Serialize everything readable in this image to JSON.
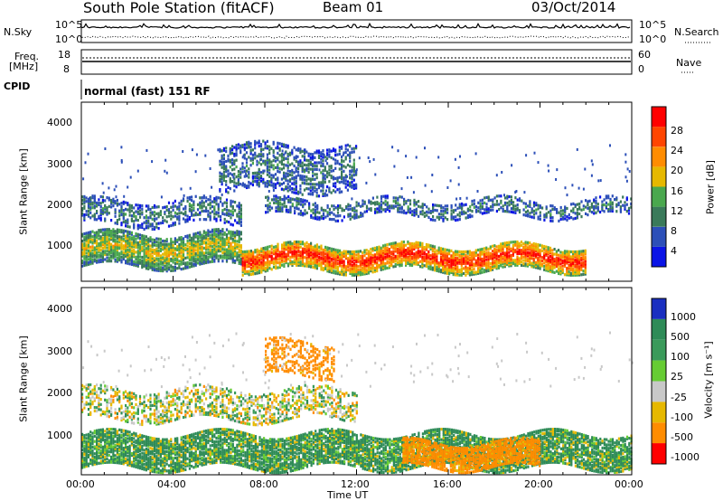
{
  "header": {
    "station": "South Pole Station (fitACF)",
    "beam": "Beam 01",
    "date": "03/Oct/2014"
  },
  "top_panel": {
    "left_label": "N.Sky",
    "right_label": "N.Search",
    "left_ticks": [
      "10^5",
      "10^0"
    ],
    "right_ticks": [
      "10^5",
      "10^0"
    ]
  },
  "freq_panel": {
    "left_label_line1": "Freq.",
    "left_label_line2": "[MHz]",
    "right_label": "Nave",
    "left_ticks": [
      "18",
      "8"
    ],
    "right_ticks": [
      "60",
      "0"
    ]
  },
  "cpid_panel": {
    "label": "CPID",
    "value": "normal (fast) 151 RF"
  },
  "power_panel": {
    "ylabel": "Slant Range [km]",
    "yticks": [
      "4000",
      "3000",
      "2000",
      "1000"
    ],
    "colorbar_label": "Power [dB]",
    "colorbar_ticks": [
      "28",
      "24",
      "20",
      "16",
      "12",
      "8",
      "4"
    ],
    "colors": [
      "#0a14e6",
      "#2c4fb8",
      "#3a7a5a",
      "#4aa84e",
      "#e6b800",
      "#ff8c00",
      "#ff4500",
      "#ff0000"
    ]
  },
  "velocity_panel": {
    "ylabel": "Slant Range [km]",
    "yticks": [
      "4000",
      "3000",
      "2000",
      "1000"
    ],
    "colorbar_label": "Velocity [m s⁻¹]",
    "colorbar_ticks": [
      "1000",
      "500",
      "100",
      "25",
      "-25",
      "-100",
      "-500",
      "-1000"
    ],
    "colors": [
      "#1a2fc0",
      "#2e8b57",
      "#3a9a5a",
      "#66cc33",
      "#c8c8c8",
      "#e6b800",
      "#ff8c00",
      "#ff0000"
    ]
  },
  "xaxis": {
    "label": "Time UT",
    "ticks": [
      "00:00",
      "04:00",
      "08:00",
      "12:00",
      "16:00",
      "20:00",
      "00:00"
    ]
  },
  "chart_data": [
    {
      "type": "heatmap",
      "title": "South Pole Station (fitACF) Beam 01 03/Oct/2014",
      "xlabel": "Time UT",
      "ylabel": "Slant Range [km]",
      "x_range": [
        "00:00",
        "24:00"
      ],
      "ylim": [
        200,
        4500
      ],
      "colorbar": "Power [dB]",
      "colorbar_range": [
        0,
        30
      ],
      "bands": [
        {
          "time": [
            "00:00",
            "07:00"
          ],
          "range_km": [
            600,
            1400
          ],
          "power_db": 16
        },
        {
          "time": [
            "00:00",
            "07:00"
          ],
          "range_km": [
            1600,
            2200
          ],
          "power_db": 10
        },
        {
          "time": [
            "07:00",
            "22:00"
          ],
          "range_km": [
            500,
            1100
          ],
          "power_db": 28
        },
        {
          "time": [
            "08:00",
            "24:00"
          ],
          "range_km": [
            1800,
            2200
          ],
          "power_db": 8
        },
        {
          "time": [
            "06:00",
            "12:00"
          ],
          "range_km": [
            2400,
            3500
          ],
          "power_db": 8
        }
      ]
    },
    {
      "type": "heatmap",
      "xlabel": "Time UT",
      "ylabel": "Slant Range [km]",
      "x_range": [
        "00:00",
        "24:00"
      ],
      "ylim": [
        200,
        4500
      ],
      "colorbar": "Velocity [m s-1]",
      "colorbar_range": [
        -1000,
        1000
      ],
      "bands": [
        {
          "time": [
            "00:00",
            "24:00"
          ],
          "range_km": [
            400,
            1200
          ],
          "velocity": 150
        },
        {
          "time": [
            "00:00",
            "12:00"
          ],
          "range_km": [
            1500,
            2200
          ],
          "velocity": 0
        },
        {
          "time": [
            "14:00",
            "20:00"
          ],
          "range_km": [
            400,
            1000
          ],
          "velocity": -200
        },
        {
          "time": [
            "08:00",
            "11:00"
          ],
          "range_km": [
            2500,
            3300
          ],
          "velocity": -200
        }
      ]
    }
  ]
}
